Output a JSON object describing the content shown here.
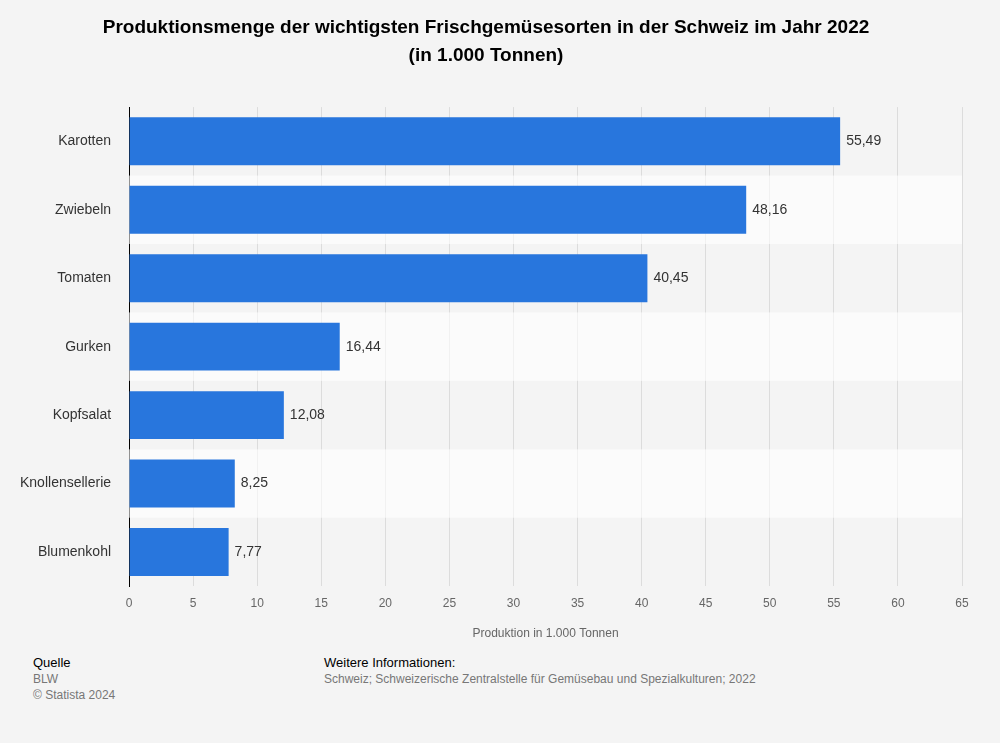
{
  "chart_data": {
    "type": "bar",
    "orientation": "horizontal",
    "title": "Produktionsmenge der wichtigsten Frischgemüsesorten in der Schweiz im Jahr 2022",
    "subtitle": "(in 1.000 Tonnen)",
    "x_label": "Produktion in 1.000 Tonnen",
    "categories": [
      "Karotten",
      "Zwiebeln",
      "Tomaten",
      "Gurken",
      "Kopfsalat",
      "Knollensellerie",
      "Blumenkohl"
    ],
    "values": [
      55.49,
      48.16,
      40.45,
      16.44,
      12.08,
      8.25,
      7.77
    ],
    "value_labels": [
      "55,49",
      "48,16",
      "40,45",
      "16,44",
      "12,08",
      "8,25",
      "7,77"
    ],
    "color": "#2876dd",
    "xlim": [
      0,
      65
    ],
    "xticks": [
      0,
      5,
      10,
      15,
      20,
      25,
      30,
      35,
      40,
      45,
      50,
      55,
      60,
      65
    ],
    "grid": true,
    "data_labels": true
  },
  "footer": {
    "source_heading": "Quelle",
    "source": [
      "BLW",
      "© Statista 2024"
    ],
    "info_heading": "Weitere Informationen:",
    "info": "Schweiz; Schweizerische Zentralstelle für Gemüsebau und Spezialkulturen; 2022"
  }
}
